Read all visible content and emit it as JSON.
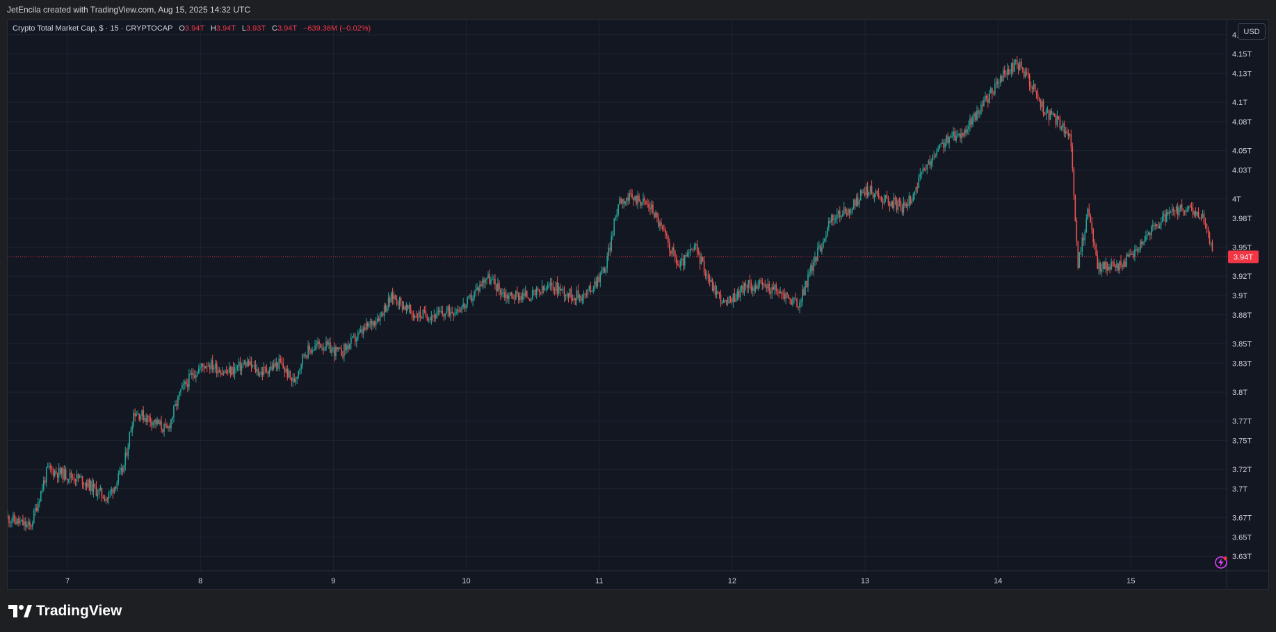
{
  "header": {
    "attribution": "JetEncila created with TradingView.com, Aug 15, 2025 14:32 UTC"
  },
  "legend": {
    "title": "Crypto Total Market Cap, $ · 15 · CRYPTOCAP",
    "o_label": "O",
    "o_value": "3.94T",
    "h_label": "H",
    "h_value": "3.94T",
    "l_label": "L",
    "l_value": "3.93T",
    "c_label": "C",
    "c_value": "3.94T",
    "change": "−639.36M (−0.02%)"
  },
  "price_scale": {
    "currency": "USD",
    "last_price_label": "3.94T"
  },
  "brand": {
    "name": "TradingView"
  },
  "colors": {
    "background": "#131722",
    "up": "#26a69a",
    "down": "#ef5350",
    "grid": "#1f2430",
    "text": "#d1d4dc",
    "last_price": "#f23645"
  },
  "icons": {
    "alert": "lightning-icon",
    "logo": "tradingview-logo-icon"
  },
  "chart_data": {
    "type": "candlestick",
    "title": "Crypto Total Market Cap, $ · 15 · CRYPTOCAP",
    "x_ticks": [
      "7",
      "8",
      "9",
      "10",
      "11",
      "12",
      "13",
      "14",
      "15"
    ],
    "y_ticks": [
      "3.63T",
      "3.65T",
      "3.67T",
      "3.7T",
      "3.72T",
      "3.75T",
      "3.77T",
      "3.8T",
      "3.83T",
      "3.85T",
      "3.88T",
      "3.9T",
      "3.92T",
      "3.95T",
      "3.98T",
      "4T",
      "4.03T",
      "4.05T",
      "4.08T",
      "4.1T",
      "4.13T",
      "4.15T",
      "4.17T"
    ],
    "y_unit": "trillion USD",
    "ylim": [
      3.615,
      4.185
    ],
    "xlim_days": [
      6.55,
      15.72
    ],
    "last_price": 3.94,
    "grid": true,
    "price_path": [
      [
        6.55,
        3.67
      ],
      [
        6.72,
        3.66
      ],
      [
        6.85,
        3.72
      ],
      [
        7.1,
        3.71
      ],
      [
        7.2,
        3.7
      ],
      [
        7.3,
        3.69
      ],
      [
        7.42,
        3.72
      ],
      [
        7.5,
        3.78
      ],
      [
        7.65,
        3.77
      ],
      [
        7.75,
        3.76
      ],
      [
        7.85,
        3.8
      ],
      [
        7.95,
        3.82
      ],
      [
        8.05,
        3.83
      ],
      [
        8.2,
        3.82
      ],
      [
        8.35,
        3.83
      ],
      [
        8.45,
        3.82
      ],
      [
        8.6,
        3.83
      ],
      [
        8.7,
        3.81
      ],
      [
        8.78,
        3.84
      ],
      [
        8.9,
        3.85
      ],
      [
        9.05,
        3.84
      ],
      [
        9.2,
        3.86
      ],
      [
        9.35,
        3.88
      ],
      [
        9.45,
        3.9
      ],
      [
        9.6,
        3.88
      ],
      [
        9.8,
        3.88
      ],
      [
        10.0,
        3.89
      ],
      [
        10.15,
        3.92
      ],
      [
        10.3,
        3.9
      ],
      [
        10.5,
        3.9
      ],
      [
        10.65,
        3.91
      ],
      [
        10.8,
        3.9
      ],
      [
        10.9,
        3.9
      ],
      [
        11.05,
        3.93
      ],
      [
        11.15,
        4.0
      ],
      [
        11.3,
        4.0
      ],
      [
        11.4,
        3.99
      ],
      [
        11.5,
        3.96
      ],
      [
        11.6,
        3.93
      ],
      [
        11.72,
        3.95
      ],
      [
        11.85,
        3.91
      ],
      [
        11.95,
        3.89
      ],
      [
        12.1,
        3.91
      ],
      [
        12.25,
        3.91
      ],
      [
        12.4,
        3.9
      ],
      [
        12.5,
        3.89
      ],
      [
        12.6,
        3.93
      ],
      [
        12.75,
        3.98
      ],
      [
        12.9,
        3.99
      ],
      [
        13.0,
        4.01
      ],
      [
        13.15,
        4.0
      ],
      [
        13.3,
        3.99
      ],
      [
        13.45,
        4.03
      ],
      [
        13.6,
        4.06
      ],
      [
        13.75,
        4.07
      ],
      [
        13.9,
        4.1
      ],
      [
        14.05,
        4.13
      ],
      [
        14.15,
        4.14
      ],
      [
        14.25,
        4.12
      ],
      [
        14.35,
        4.09
      ],
      [
        14.45,
        4.08
      ],
      [
        14.55,
        4.06
      ],
      [
        14.6,
        3.93
      ],
      [
        14.68,
        3.99
      ],
      [
        14.75,
        3.93
      ],
      [
        14.9,
        3.93
      ],
      [
        15.0,
        3.94
      ],
      [
        15.1,
        3.96
      ],
      [
        15.25,
        3.98
      ],
      [
        15.4,
        3.99
      ],
      [
        15.55,
        3.98
      ],
      [
        15.62,
        3.94
      ]
    ]
  }
}
